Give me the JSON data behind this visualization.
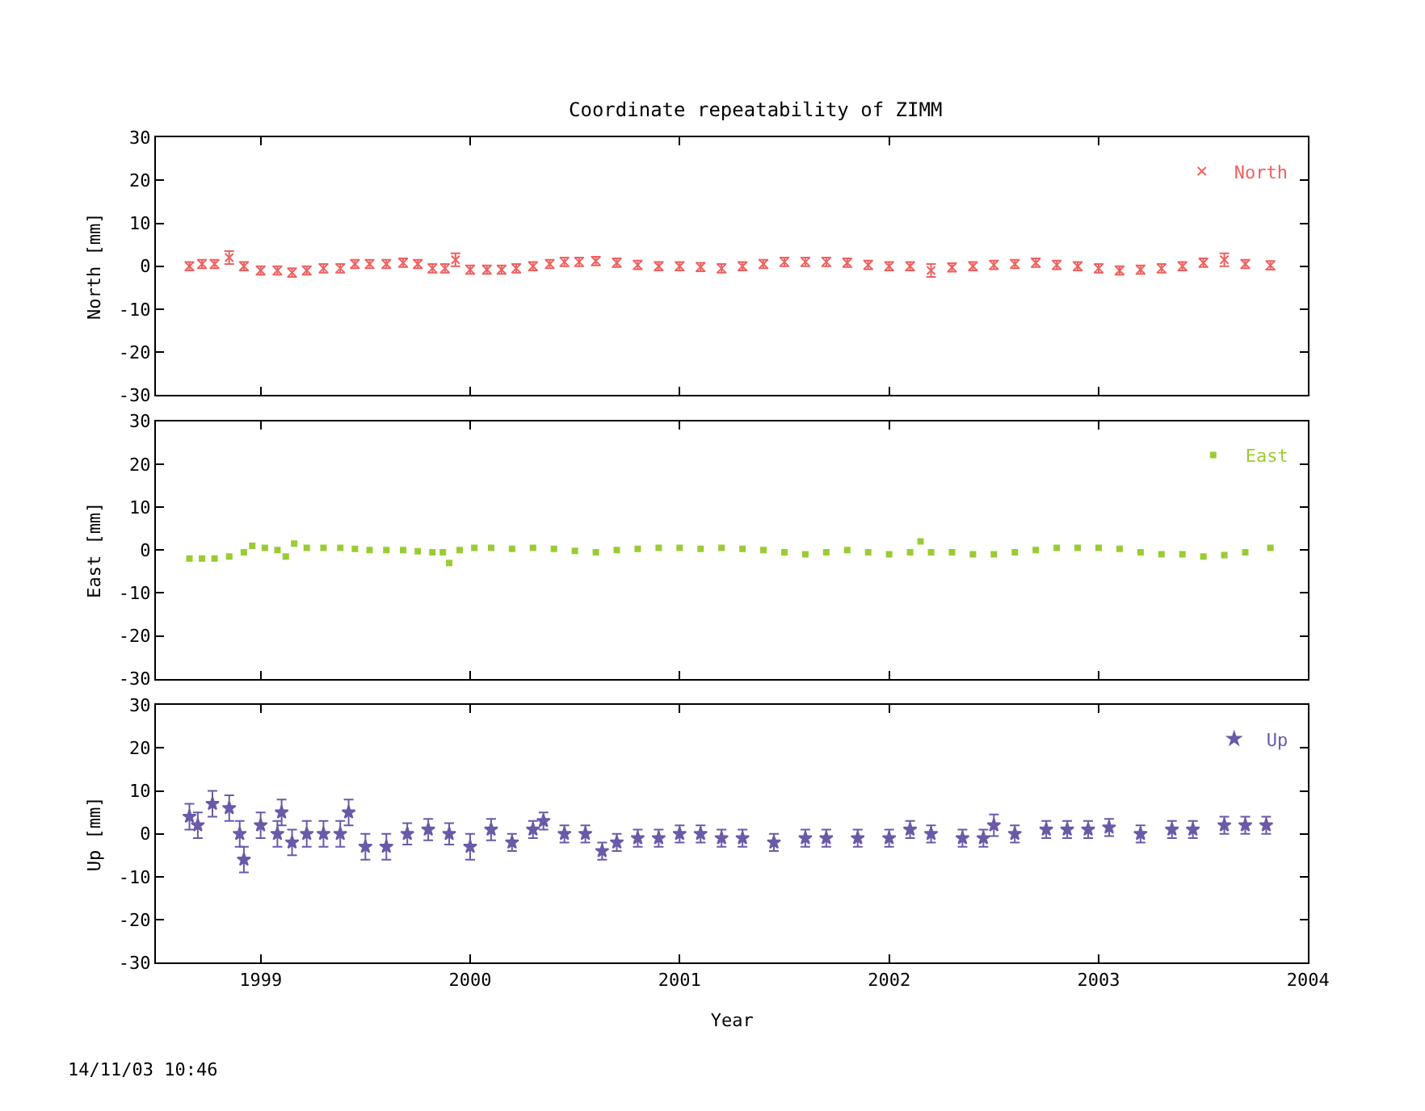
{
  "chart_data": [
    {
      "type": "scatter",
      "title": "Coordinate repeatability of ZIMM",
      "ylabel": "North [mm]",
      "xlim": [
        1998.5,
        2004
      ],
      "xticks": [
        1999,
        2000,
        2001,
        2002,
        2003,
        2004
      ],
      "ylim": [
        -30,
        30
      ],
      "yticks": [
        -30,
        -20,
        -10,
        0,
        10,
        20,
        30
      ],
      "tick_labels": "y",
      "marker": "cross",
      "legend": "top right",
      "series": [
        {
          "name": "North",
          "color": "#f06060",
          "x": [
            1998.66,
            1998.72,
            1998.78,
            1998.85,
            1998.92,
            1999.0,
            1999.08,
            1999.15,
            1999.22,
            1999.3,
            1999.38,
            1999.45,
            1999.52,
            1999.6,
            1999.68,
            1999.75,
            1999.82,
            1999.88,
            1999.93,
            2000.0,
            2000.08,
            2000.15,
            2000.22,
            2000.3,
            2000.38,
            2000.45,
            2000.52,
            2000.6,
            2000.7,
            2000.8,
            2000.9,
            2001.0,
            2001.1,
            2001.2,
            2001.3,
            2001.4,
            2001.5,
            2001.6,
            2001.7,
            2001.8,
            2001.9,
            2002.0,
            2002.1,
            2002.2,
            2002.3,
            2002.4,
            2002.5,
            2002.6,
            2002.7,
            2002.8,
            2002.9,
            2003.0,
            2003.1,
            2003.2,
            2003.3,
            2003.4,
            2003.5,
            2003.6,
            2003.7,
            2003.82
          ],
          "values": [
            0,
            0.5,
            0.5,
            2,
            0,
            -1,
            -1,
            -1.5,
            -1,
            -0.5,
            -0.5,
            0.5,
            0.5,
            0.5,
            0.8,
            0.5,
            -0.5,
            -0.5,
            1.5,
            -0.8,
            -0.8,
            -0.8,
            -0.5,
            0,
            0.5,
            1,
            1,
            1.2,
            0.8,
            0.3,
            0,
            0,
            -0.2,
            -0.5,
            0,
            0.5,
            1,
            1,
            1,
            0.8,
            0.3,
            0,
            0,
            -1,
            -0.3,
            0,
            0.3,
            0.5,
            0.8,
            0.3,
            0,
            -0.5,
            -1,
            -0.8,
            -0.5,
            0,
            0.8,
            1.5,
            0.5,
            0.2
          ],
          "errors": [
            1,
            1,
            1,
            1.5,
            1,
            1,
            1,
            1,
            1,
            1,
            1,
            1,
            1,
            1,
            1,
            1,
            1,
            1,
            1.5,
            1,
            1,
            1,
            1,
            1,
            1,
            1,
            1,
            1,
            1,
            1,
            1,
            1,
            1,
            1,
            1,
            1,
            1,
            1,
            1,
            1,
            1,
            1,
            1,
            1.5,
            1,
            1,
            1,
            1,
            1,
            1,
            1,
            1,
            1,
            1,
            1,
            1,
            1,
            1.5,
            1,
            1
          ]
        }
      ]
    },
    {
      "type": "scatter",
      "ylabel": "East [mm]",
      "xlim": [
        1998.5,
        2004
      ],
      "xticks": [
        1999,
        2000,
        2001,
        2002,
        2003,
        2004
      ],
      "ylim": [
        -30,
        30
      ],
      "yticks": [
        -30,
        -20,
        -10,
        0,
        10,
        20,
        30
      ],
      "tick_labels": "y",
      "marker": "square",
      "legend": "top right",
      "series": [
        {
          "name": "East",
          "color": "#99cc33",
          "x": [
            1998.66,
            1998.72,
            1998.78,
            1998.85,
            1998.92,
            1998.96,
            1999.02,
            1999.08,
            1999.12,
            1999.16,
            1999.22,
            1999.3,
            1999.38,
            1999.45,
            1999.52,
            1999.6,
            1999.68,
            1999.75,
            1999.82,
            1999.87,
            1999.9,
            1999.95,
            2000.02,
            2000.1,
            2000.2,
            2000.3,
            2000.4,
            2000.5,
            2000.6,
            2000.7,
            2000.8,
            2000.9,
            2001.0,
            2001.1,
            2001.2,
            2001.3,
            2001.4,
            2001.5,
            2001.6,
            2001.7,
            2001.8,
            2001.9,
            2002.0,
            2002.1,
            2002.15,
            2002.2,
            2002.3,
            2002.4,
            2002.5,
            2002.6,
            2002.7,
            2002.8,
            2002.9,
            2003.0,
            2003.1,
            2003.2,
            2003.3,
            2003.4,
            2003.5,
            2003.6,
            2003.7,
            2003.82
          ],
          "values": [
            -2,
            -2,
            -2,
            -1.5,
            -0.5,
            1,
            0.5,
            0,
            -1.5,
            1.5,
            0.5,
            0.5,
            0.5,
            0.3,
            0,
            0,
            0,
            -0.3,
            -0.5,
            -0.5,
            -3,
            0,
            0.5,
            0.5,
            0.3,
            0.5,
            0.3,
            -0.2,
            -0.5,
            0,
            0.3,
            0.5,
            0.5,
            0.3,
            0.5,
            0.3,
            0,
            -0.5,
            -1,
            -0.5,
            0,
            -0.5,
            -1,
            -0.5,
            2,
            -0.5,
            -0.5,
            -1,
            -1,
            -0.5,
            0,
            0.5,
            0.5,
            0.5,
            0.3,
            -0.5,
            -1,
            -1,
            -1.5,
            -1.2,
            -0.5,
            0.5
          ]
        }
      ]
    },
    {
      "type": "scatter",
      "ylabel": "Up [mm]",
      "xlabel": "Year",
      "xlim": [
        1998.5,
        2004
      ],
      "xticks": [
        1999,
        2000,
        2001,
        2002,
        2003,
        2004
      ],
      "ylim": [
        -30,
        30
      ],
      "yticks": [
        -30,
        -20,
        -10,
        0,
        10,
        20,
        30
      ],
      "marker": "star",
      "legend": "top right",
      "annotations": [
        "14/11/03 10:46"
      ],
      "series": [
        {
          "name": "Up",
          "color": "#6a5aa8",
          "x": [
            1998.66,
            1998.7,
            1998.77,
            1998.85,
            1998.9,
            1998.92,
            1999.0,
            1999.08,
            1999.1,
            1999.15,
            1999.22,
            1999.3,
            1999.38,
            1999.42,
            1999.5,
            1999.6,
            1999.7,
            1999.8,
            1999.9,
            2000.0,
            2000.1,
            2000.2,
            2000.3,
            2000.35,
            2000.45,
            2000.55,
            2000.63,
            2000.7,
            2000.8,
            2000.9,
            2001.0,
            2001.1,
            2001.2,
            2001.3,
            2001.45,
            2001.6,
            2001.7,
            2001.85,
            2002.0,
            2002.1,
            2002.2,
            2002.35,
            2002.45,
            2002.5,
            2002.6,
            2002.75,
            2002.85,
            2002.95,
            2003.05,
            2003.2,
            2003.35,
            2003.45,
            2003.6,
            2003.7,
            2003.8
          ],
          "values": [
            4,
            2,
            7,
            6,
            0,
            -6,
            2,
            0,
            5,
            -2,
            0,
            0,
            0,
            5,
            -3,
            -3,
            0,
            1,
            0,
            -3,
            1,
            -2,
            1,
            3,
            0,
            0,
            -4,
            -2,
            -1,
            -1,
            0,
            0,
            -1,
            -1,
            -2,
            -1,
            -1,
            -1,
            -1,
            1,
            0,
            -1,
            -1,
            2,
            0,
            1,
            1,
            1,
            1.5,
            0,
            1,
            1,
            2,
            2,
            2
          ],
          "errors": [
            3,
            3,
            3,
            3,
            3,
            3,
            3,
            3,
            3,
            3,
            3,
            3,
            3,
            3,
            3,
            3,
            2.5,
            2.5,
            2.5,
            3,
            2.5,
            2,
            2,
            2,
            2,
            2,
            2,
            2,
            2,
            2,
            2,
            2,
            2,
            2,
            2,
            2,
            2,
            2,
            2,
            2,
            2,
            2,
            2,
            2.5,
            2,
            2,
            2,
            2,
            2,
            2,
            2,
            2,
            2,
            2,
            2
          ]
        }
      ]
    }
  ]
}
